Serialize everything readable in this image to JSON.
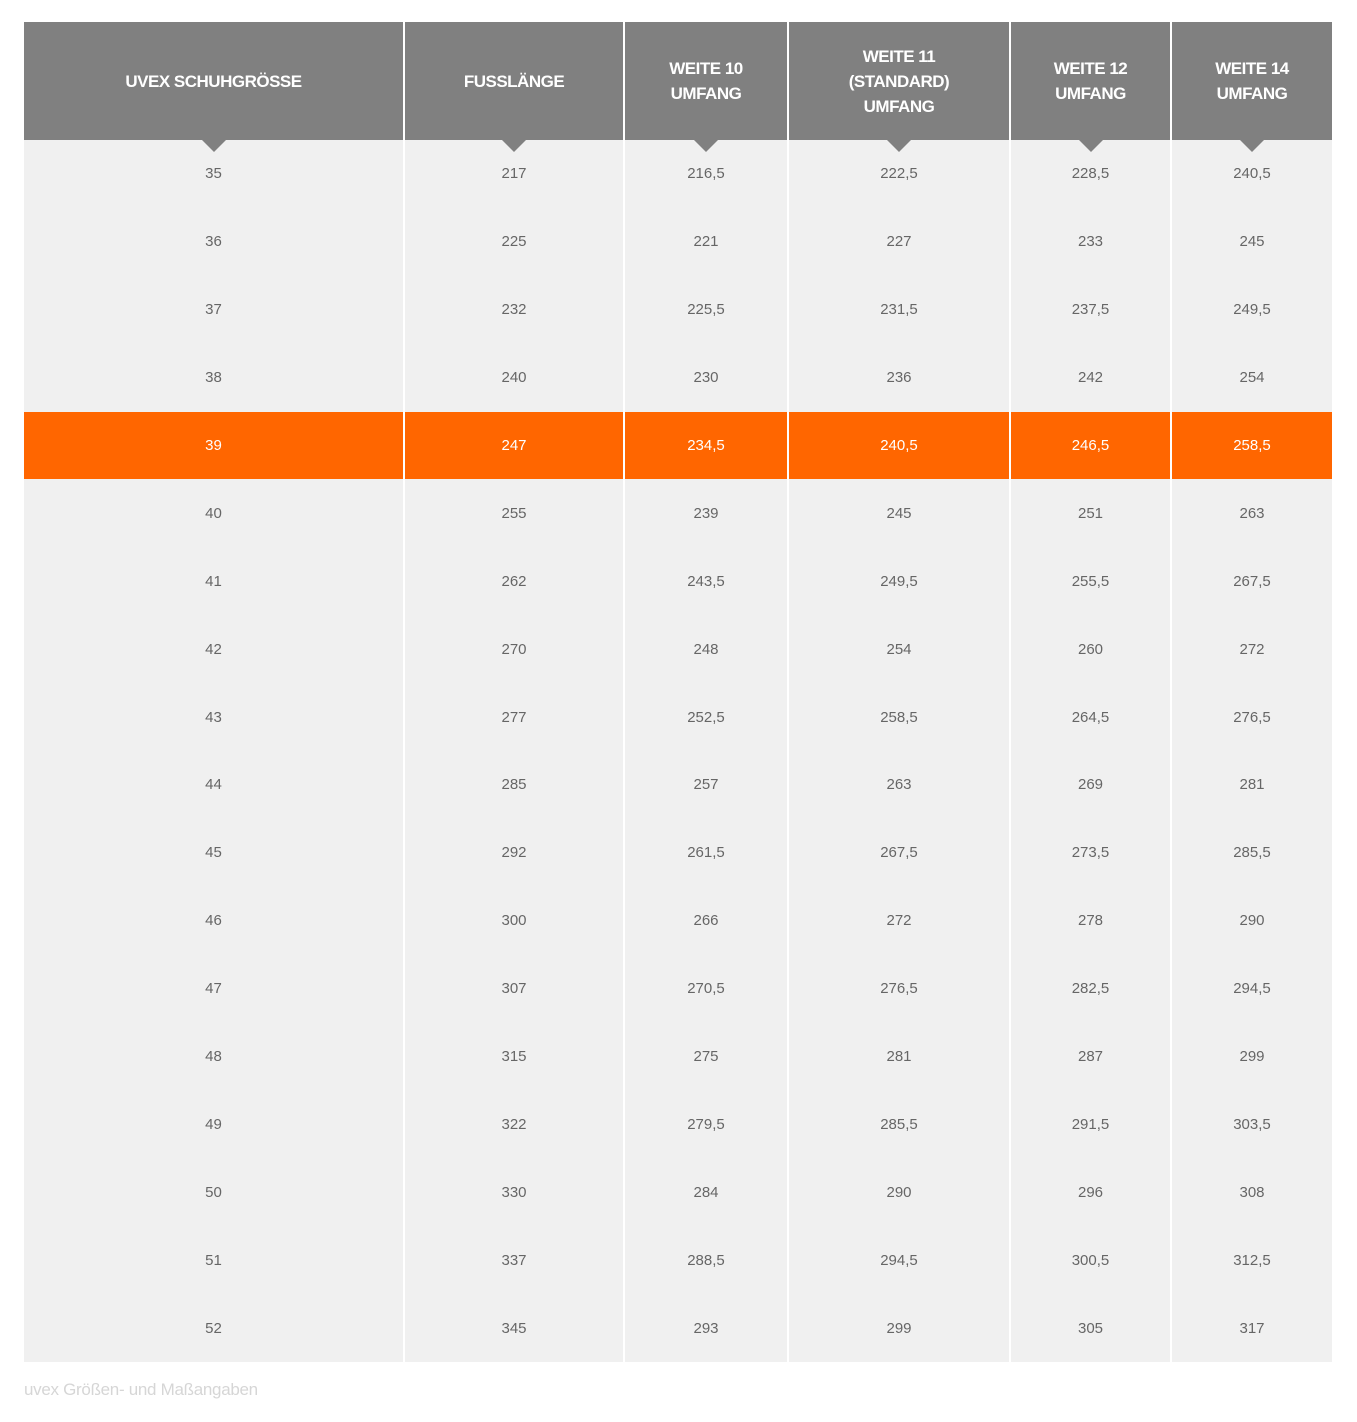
{
  "table": {
    "headers": [
      "UVEX SCHUHGRÖSSE",
      "FUSSLÄNGE",
      "WEITE 10\nUMFANG",
      "WEITE 11\n(STANDARD)\nUMFANG",
      "WEITE 12\nUMFANG",
      "WEITE 14\nUMFANG"
    ],
    "highlighted_size": "39",
    "highlight_color": "#ff6600",
    "header_color": "#808080",
    "rows": [
      [
        "35",
        "217",
        "216,5",
        "222,5",
        "228,5",
        "240,5"
      ],
      [
        "36",
        "225",
        "221",
        "227",
        "233",
        "245"
      ],
      [
        "37",
        "232",
        "225,5",
        "231,5",
        "237,5",
        "249,5"
      ],
      [
        "38",
        "240",
        "230",
        "236",
        "242",
        "254"
      ],
      [
        "39",
        "247",
        "234,5",
        "240,5",
        "246,5",
        "258,5"
      ],
      [
        "40",
        "255",
        "239",
        "245",
        "251",
        "263"
      ],
      [
        "41",
        "262",
        "243,5",
        "249,5",
        "255,5",
        "267,5"
      ],
      [
        "42",
        "270",
        "248",
        "254",
        "260",
        "272"
      ],
      [
        "43",
        "277",
        "252,5",
        "258,5",
        "264,5",
        "276,5"
      ],
      [
        "44",
        "285",
        "257",
        "263",
        "269",
        "281"
      ],
      [
        "45",
        "292",
        "261,5",
        "267,5",
        "273,5",
        "285,5"
      ],
      [
        "46",
        "300",
        "266",
        "272",
        "278",
        "290"
      ],
      [
        "47",
        "307",
        "270,5",
        "276,5",
        "282,5",
        "294,5"
      ],
      [
        "48",
        "315",
        "275",
        "281",
        "287",
        "299"
      ],
      [
        "49",
        "322",
        "279,5",
        "285,5",
        "291,5",
        "303,5"
      ],
      [
        "50",
        "330",
        "284",
        "290",
        "296",
        "308"
      ],
      [
        "51",
        "337",
        "288,5",
        "294,5",
        "300,5",
        "312,5"
      ],
      [
        "52",
        "345",
        "293",
        "299",
        "305",
        "317"
      ]
    ]
  },
  "caption": "uvex Größen- und Maßangaben"
}
